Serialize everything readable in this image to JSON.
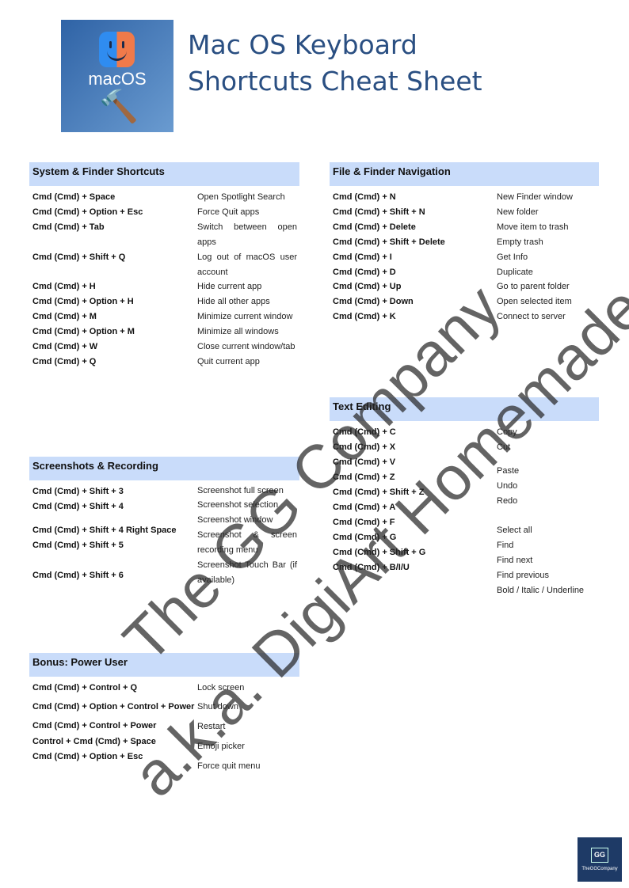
{
  "header": {
    "logo_text": "macOS",
    "title_line1": "Mac OS Keyboard",
    "title_line2": "Shortcuts Cheat Sheet"
  },
  "sections": [
    {
      "title": "System & Finder Shortcuts",
      "rows": [
        {
          "key": "Cmd (Cmd) + Space",
          "desc": "Open Spotlight Search"
        },
        {
          "key": "Cmd (Cmd) + Option + Esc",
          "desc": "Force Quit apps"
        },
        {
          "key": "Cmd (Cmd) + Tab",
          "desc": "Switch between open apps"
        },
        {
          "key": "Cmd (Cmd) + Shift + Q",
          "desc": "Log out of macOS user account"
        },
        {
          "key": "Cmd (Cmd) + H",
          "desc": "Hide current app"
        },
        {
          "key": "Cmd (Cmd) + Option + H",
          "desc": "Hide all other apps"
        },
        {
          "key": "Cmd (Cmd) + M",
          "desc": "Minimize current window"
        },
        {
          "key": "Cmd (Cmd) + Option + M",
          "desc": "Minimize all windows"
        },
        {
          "key": "Cmd (Cmd) + W",
          "desc": "Close current window/tab"
        },
        {
          "key": "Cmd (Cmd) + Q",
          "desc": "Quit current app"
        }
      ]
    },
    {
      "title": "File & Finder Navigation",
      "rows": [
        {
          "key": "Cmd (Cmd) + N",
          "desc": "New Finder window"
        },
        {
          "key": "Cmd (Cmd) + Shift + N",
          "desc": "New folder"
        },
        {
          "key": "Cmd (Cmd) + Delete",
          "desc": "Move item to trash"
        },
        {
          "key": "Cmd (Cmd) + Shift + Delete",
          "desc": "Empty trash"
        },
        {
          "key": "Cmd (Cmd) + I",
          "desc": "Get Info"
        },
        {
          "key": "Cmd (Cmd) + D",
          "desc": "Duplicate"
        },
        {
          "key": "Cmd (Cmd) + Up",
          "desc": "Go to parent folder"
        },
        {
          "key": "Cmd (Cmd) + Down",
          "desc": "Open selected item"
        },
        {
          "key": "Cmd (Cmd) + K",
          "desc": "Connect to server"
        }
      ]
    },
    {
      "title": "Text Editing",
      "rows": [
        {
          "key": "Cmd (Cmd) + C",
          "desc": "Copy"
        },
        {
          "key": "Cmd (Cmd) + X",
          "desc": "Cut"
        },
        {
          "key": "Cmd (Cmd) + V",
          "desc": "Paste"
        },
        {
          "key": "Cmd (Cmd) + Z",
          "desc": "Undo"
        },
        {
          "key": "Cmd (Cmd) + Shift + Z",
          "desc": "Redo"
        },
        {
          "key": "Cmd (Cmd) + A",
          "desc": "Select all"
        },
        {
          "key": "Cmd (Cmd) + F",
          "desc": "Find"
        },
        {
          "key": "Cmd (Cmd) + G",
          "desc": "Find next"
        },
        {
          "key": "Cmd (Cmd) + Shift + G",
          "desc": "Find previous"
        },
        {
          "key": "Cmd (Cmd) + B/I/U",
          "desc": "Bold / Italic / Underline"
        }
      ]
    },
    {
      "title": "Screenshots & Recording",
      "rows": [
        {
          "key": "Cmd (Cmd) + Shift + 3",
          "desc": "Screenshot full screen"
        },
        {
          "key": "Cmd (Cmd) + Shift + 4",
          "desc": "Screenshot selection"
        },
        {
          "key": "Cmd (Cmd) + Shift + 4 Right Space",
          "desc": "Screenshot window"
        },
        {
          "key": "Cmd (Cmd) + Shift + 5",
          "desc": "Screenshot & screen recording menu"
        },
        {
          "key": "Cmd (Cmd) + Shift + 6",
          "desc": "Screenshot Touch Bar (if available)"
        }
      ]
    },
    {
      "title": "Bonus: Power User",
      "rows": [
        {
          "key": "Cmd (Cmd) + Control + Q",
          "desc": "Lock screen"
        },
        {
          "key": "Cmd (Cmd) + Option + Control + Power",
          "desc": "Shut down"
        },
        {
          "key": "Cmd (Cmd) + Control + Power",
          "desc": "Restart"
        },
        {
          "key": "Control + Cmd (Cmd) + Space",
          "desc": "Emoji picker"
        },
        {
          "key": "Cmd (Cmd) + Option + Esc",
          "desc": "Force quit menu"
        }
      ]
    }
  ],
  "watermark": {
    "line1": "The GG Company",
    "line2": "a.k.a. DigiArt Homemade"
  },
  "footer_logo": {
    "mark": "GG",
    "name": "TheGGCompany"
  },
  "colors": {
    "header_bg": "#c9dcfa",
    "title": "#2a4f82",
    "logo_bg": "#2f63a6"
  }
}
